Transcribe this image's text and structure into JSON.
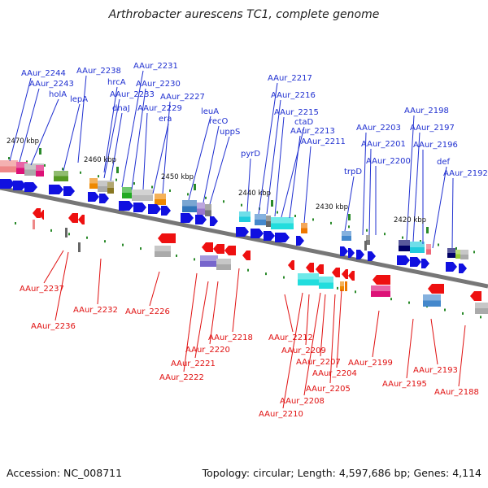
{
  "title": "Arthrobacter aurescens TC1, complete genome",
  "footer": {
    "accession": "Accession: NC_008711",
    "summary": "Topology: circular; Length: 4,597,686 bp; Genes: 4,114"
  },
  "colors": {
    "forward_label": "#1f2fd0",
    "reverse_label": "#e01010",
    "forward_arrow": "#1010e0",
    "reverse_arrow": "#ee1010",
    "backbone": "#777777"
  },
  "kbp_ticks": [
    "2470 kbp",
    "2460 kbp",
    "2450 kbp",
    "2440 kbp",
    "2430 kbp",
    "2420 kbp"
  ],
  "forward_genes": [
    "AAur_2244",
    "AAur_2243",
    "holA",
    "lepA",
    "AAur_2238",
    "hrcA",
    "AAur_2233",
    "dnaJ",
    "AAur_2231",
    "AAur_2230",
    "AAur_2229",
    "era",
    "AAur_2227",
    "leuA",
    "recO",
    "uppS",
    "pyrD",
    "AAur_2217",
    "AAur_2216",
    "AAur_2215",
    "ctaD",
    "AAur_2213",
    "AAur_2211",
    "trpD",
    "AAur_2203",
    "AAur_2201",
    "AAur_2200",
    "AAur_2198",
    "AAur_2197",
    "AAur_2196",
    "def",
    "AAur_2192"
  ],
  "reverse_genes": [
    "AAur_2237",
    "AAur_2236",
    "AAur_2232",
    "AAur_2226",
    "AAur_2222",
    "AAur_2221",
    "AAur_2220",
    "AAur_2218",
    "AAur_2212",
    "AAur_2210",
    "AAur_2209",
    "AAur_2208",
    "AAur_2207",
    "AAur_2205",
    "AAur_2204",
    "AAur_2199",
    "AAur_2195",
    "AAur_2193",
    "AAur_2188"
  ]
}
